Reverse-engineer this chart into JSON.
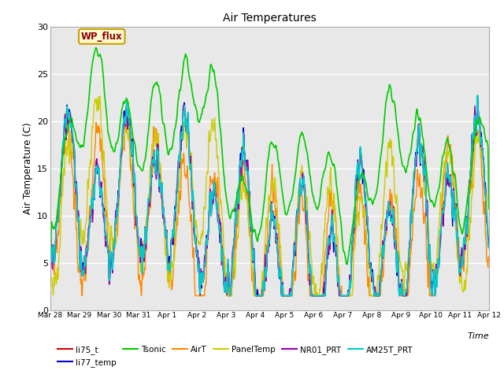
{
  "title": "Air Temperatures",
  "ylabel": "Air Temperature (C)",
  "xlabel": "Time",
  "ylim": [
    0,
    30
  ],
  "background_color": "#e8e8e8",
  "fig_background": "#ffffff",
  "wp_flux_label": "WP_flux",
  "wp_flux_text_color": "#8b0000",
  "wp_flux_box_color": "#fffacd",
  "wp_flux_border_color": "#c8a000",
  "series": {
    "li75_t": {
      "color": "#cc0000",
      "lw": 1.0
    },
    "li77_temp": {
      "color": "#0000cc",
      "lw": 1.0
    },
    "Tsonic": {
      "color": "#00cc00",
      "lw": 1.2
    },
    "AirT": {
      "color": "#ff8800",
      "lw": 1.0
    },
    "PanelTemp": {
      "color": "#cccc00",
      "lw": 1.0
    },
    "NR01_PRT": {
      "color": "#9900aa",
      "lw": 1.0
    },
    "AM25T_PRT": {
      "color": "#00cccc",
      "lw": 1.2
    }
  },
  "xtick_labels": [
    "Mar 28",
    "Mar 29",
    "Mar 30",
    "Mar 31",
    "Apr 1",
    "Apr 2",
    "Apr 3",
    "Apr 4",
    "Apr 5",
    "Apr 6",
    "Apr 7",
    "Apr 8",
    "Apr 9",
    "Apr 10",
    "Apr 11",
    "Apr 12"
  ],
  "ytick_values": [
    0,
    5,
    10,
    15,
    20,
    25,
    30
  ],
  "seed": 12345
}
